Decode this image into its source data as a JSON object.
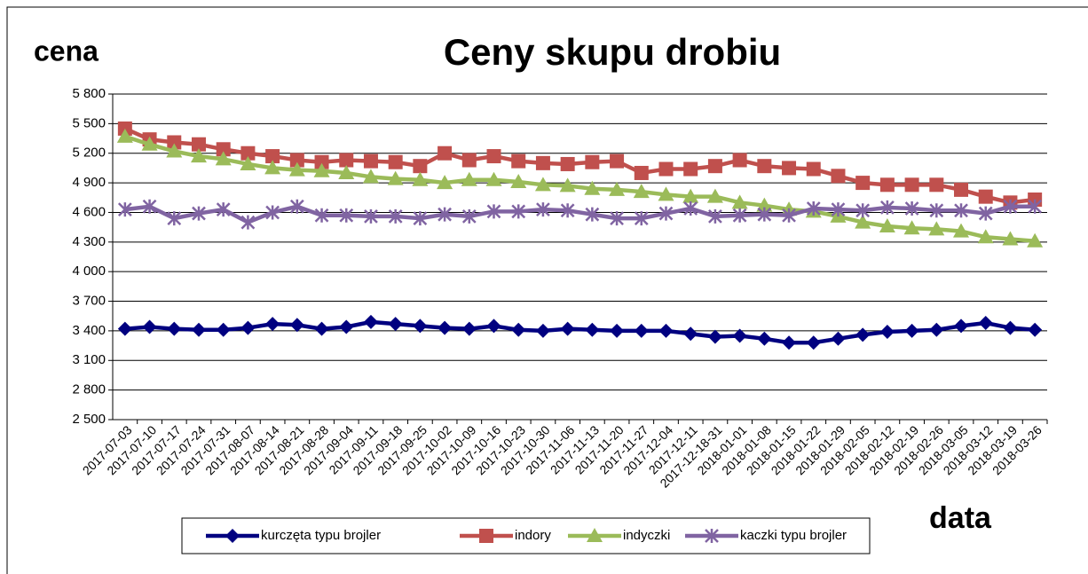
{
  "chart_data": {
    "type": "line",
    "title": "Ceny skupu drobiu",
    "y_label": "cena",
    "x_label": "data",
    "categories": [
      "2017-07-03",
      "2017-07-10",
      "2017-07-17",
      "2017-07-24",
      "2017-07-31",
      "2017-08-07",
      "2017-08-14",
      "2017-08-21",
      "2017-08-28",
      "2017-09-04",
      "2017-09-11",
      "2017-09-18",
      "2017-09-25",
      "2017-10-02",
      "2017-10-09",
      "2017-10-16",
      "2017-10-23",
      "2017-10-30",
      "2017-11-06",
      "2017-11-13",
      "2017-11-20",
      "2017-11-27",
      "2017-12-04",
      "2017-12-11",
      "2017-12-18-31",
      "2018-01-01",
      "2018-01-08",
      "2018-01-15",
      "2018-01-22",
      "2018-01-29",
      "2018-02-05",
      "2018-02-12",
      "2018-02-19",
      "2018-02-26",
      "2018-03-05",
      "2018-03-12",
      "2018-03-19",
      "2018-03-26"
    ],
    "series": [
      {
        "name": "kurczęta typu brojler",
        "color": "#000080",
        "marker": "diamond",
        "values": [
          3420,
          3440,
          3420,
          3410,
          3410,
          3430,
          3470,
          3460,
          3420,
          3440,
          3490,
          3470,
          3450,
          3430,
          3420,
          3450,
          3410,
          3400,
          3420,
          3410,
          3400,
          3400,
          3400,
          3370,
          3340,
          3350,
          3320,
          3280,
          3280,
          3320,
          3360,
          3390,
          3400,
          3410,
          3450,
          3480,
          3430,
          3410
        ]
      },
      {
        "name": "indory",
        "color": "#c0504d",
        "marker": "square",
        "values": [
          5450,
          5340,
          5310,
          5290,
          5240,
          5200,
          5170,
          5130,
          5110,
          5130,
          5120,
          5110,
          5070,
          5200,
          5130,
          5170,
          5120,
          5100,
          5090,
          5110,
          5120,
          5000,
          5040,
          5040,
          5070,
          5130,
          5070,
          5050,
          5040,
          4970,
          4900,
          4880,
          4880,
          4880,
          4830,
          4760,
          4700,
          4730
        ]
      },
      {
        "name": "indyczki",
        "color": "#9bbb59",
        "marker": "triangle",
        "values": [
          5370,
          5290,
          5220,
          5170,
          5140,
          5090,
          5050,
          5030,
          5020,
          5000,
          4960,
          4940,
          4930,
          4900,
          4930,
          4930,
          4910,
          4880,
          4870,
          4840,
          4830,
          4810,
          4780,
          4760,
          4760,
          4700,
          4670,
          4630,
          4610,
          4560,
          4500,
          4460,
          4440,
          4430,
          4410,
          4350,
          4330,
          4310
        ]
      },
      {
        "name": "kaczki typu brojler",
        "color": "#8064a2",
        "marker": "cross",
        "values": [
          4630,
          4660,
          4540,
          4590,
          4630,
          4500,
          4600,
          4660,
          4570,
          4570,
          4560,
          4560,
          4540,
          4580,
          4560,
          4610,
          4610,
          4630,
          4620,
          4580,
          4540,
          4540,
          4590,
          4640,
          4560,
          4570,
          4580,
          4570,
          4640,
          4630,
          4620,
          4650,
          4640,
          4620,
          4620,
          4590,
          4660,
          4660
        ]
      }
    ],
    "ylim": [
      2500,
      5800
    ],
    "yticks": [
      {
        "value": 2500,
        "label": "2 500"
      },
      {
        "value": 2800,
        "label": "2 800"
      },
      {
        "value": 3100,
        "label": "3 100"
      },
      {
        "value": 3400,
        "label": "3 400"
      },
      {
        "value": 3700,
        "label": "3 700"
      },
      {
        "value": 4000,
        "label": "4 000"
      },
      {
        "value": 4300,
        "label": "4 300"
      },
      {
        "value": 4600,
        "label": "4 600"
      },
      {
        "value": 4900,
        "label": "4 900"
      },
      {
        "value": 5200,
        "label": "5 200"
      },
      {
        "value": 5500,
        "label": "5 500"
      },
      {
        "value": 5800,
        "label": "5 800"
      }
    ],
    "grid": true,
    "legend": "bottom"
  }
}
